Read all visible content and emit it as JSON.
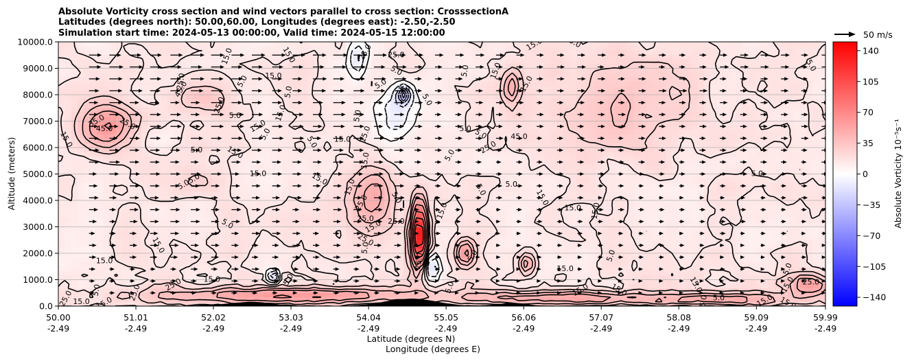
{
  "chart_data": {
    "type": "heatmap",
    "title_lines": [
      "Absolute Vorticity cross section and wind vectors parallel to cross section: CrosssectionA",
      "Latitudes (degrees north): 50.00,60.00, Longitudes (degrees east): -2.50,-2.50",
      "Simulation start time: 2024-05-13 00:00:00, Valid time: 2024-05-15 12:00:00"
    ],
    "ylabel": "Altitude (meters)",
    "xlabel_lines": [
      "Latitude (degrees N)",
      "Longitude (degrees E)"
    ],
    "xlim": [
      50.0,
      59.99
    ],
    "ylim": [
      0,
      10000
    ],
    "x_ticks": [
      {
        "lat": 50.0,
        "lat_label": "50.00",
        "lon_label": "-2.49"
      },
      {
        "lat": 51.01,
        "lat_label": "51.01",
        "lon_label": "-2.49"
      },
      {
        "lat": 52.02,
        "lat_label": "52.02",
        "lon_label": "-2.49"
      },
      {
        "lat": 53.03,
        "lat_label": "53.03",
        "lon_label": "-2.49"
      },
      {
        "lat": 54.04,
        "lat_label": "54.04",
        "lon_label": "-2.49"
      },
      {
        "lat": 55.05,
        "lat_label": "55.05",
        "lon_label": "-2.49"
      },
      {
        "lat": 56.06,
        "lat_label": "56.06",
        "lon_label": "-2.49"
      },
      {
        "lat": 57.07,
        "lat_label": "57.07",
        "lon_label": "-2.49"
      },
      {
        "lat": 58.08,
        "lat_label": "58.08",
        "lon_label": "-2.49"
      },
      {
        "lat": 59.09,
        "lat_label": "59.09",
        "lon_label": "-2.49"
      },
      {
        "lat": 59.99,
        "lat_label": "59.99",
        "lon_label": "-2.49"
      }
    ],
    "y_ticks": [
      {
        "value": 0,
        "label": "0.0"
      },
      {
        "value": 1000,
        "label": "1000.0"
      },
      {
        "value": 2000,
        "label": "2000.0"
      },
      {
        "value": 3000,
        "label": "3000.0"
      },
      {
        "value": 4000,
        "label": "4000.0"
      },
      {
        "value": 5000,
        "label": "5000.0"
      },
      {
        "value": 6000,
        "label": "6000.0"
      },
      {
        "value": 7000,
        "label": "7000.0"
      },
      {
        "value": 8000,
        "label": "8000.0"
      },
      {
        "value": 9000,
        "label": "9000.0"
      },
      {
        "value": 10000,
        "label": "10000.0"
      }
    ],
    "grid": "horizontal",
    "colorbar": {
      "label": "Absolute Vorticity 10⁻⁵s⁻¹",
      "range": [
        -150,
        150
      ],
      "ticks": [
        {
          "value": 140,
          "label": "140"
        },
        {
          "value": 105,
          "label": "105"
        },
        {
          "value": 70,
          "label": "70"
        },
        {
          "value": 35,
          "label": "35"
        },
        {
          "value": 0,
          "label": "0"
        },
        {
          "value": -35,
          "label": "−35"
        },
        {
          "value": -70,
          "label": "−70"
        },
        {
          "value": -105,
          "label": "−105"
        },
        {
          "value": -140,
          "label": "−140"
        }
      ],
      "colormap": "bwr"
    },
    "quiver_key": {
      "label": "50 m/s",
      "speed": 50
    },
    "vorticity_features": [
      {
        "lat": 50.6,
        "alt": 6800,
        "value": 45,
        "sx": 0.35,
        "sy": 900
      },
      {
        "lat": 51.9,
        "alt": 7900,
        "value": 25,
        "sx": 0.35,
        "sy": 700
      },
      {
        "lat": 54.7,
        "alt": 2700,
        "value": 140,
        "sx": 0.1,
        "sy": 1200
      },
      {
        "lat": 54.85,
        "alt": 1500,
        "value": -40,
        "sx": 0.12,
        "sy": 500
      },
      {
        "lat": 53.9,
        "alt": 9300,
        "value": -30,
        "sx": 0.12,
        "sy": 700
      },
      {
        "lat": 54.4,
        "alt": 7300,
        "value": -25,
        "sx": 0.25,
        "sy": 1200
      },
      {
        "lat": 54.5,
        "alt": 8000,
        "value": -50,
        "sx": 0.08,
        "sy": 300
      },
      {
        "lat": 52.8,
        "alt": 1100,
        "value": -55,
        "sx": 0.06,
        "sy": 250
      },
      {
        "lat": 54.1,
        "alt": 4000,
        "value": 35,
        "sx": 0.3,
        "sy": 1400
      },
      {
        "lat": 55.3,
        "alt": 2000,
        "value": 50,
        "sx": 0.12,
        "sy": 500
      },
      {
        "lat": 56.1,
        "alt": 1600,
        "value": 40,
        "sx": 0.1,
        "sy": 400
      },
      {
        "lat": 55.9,
        "alt": 8300,
        "value": 35,
        "sx": 0.1,
        "sy": 600
      },
      {
        "lat": 57.3,
        "alt": 7500,
        "value": 20,
        "sx": 1.0,
        "sy": 1800
      },
      {
        "lat": 59.8,
        "alt": 800,
        "value": 40,
        "sx": 0.25,
        "sy": 400
      },
      {
        "lat": 53.0,
        "alt": 400,
        "value": 45,
        "sx": 1.8,
        "sy": 300
      },
      {
        "lat": 56.5,
        "alt": 300,
        "value": 40,
        "sx": 1.2,
        "sy": 250
      },
      {
        "lat": 58.6,
        "alt": 250,
        "value": 35,
        "sx": 1.0,
        "sy": 250
      },
      {
        "lat": 51.8,
        "alt": 4700,
        "value": 8,
        "sx": 0.4,
        "sy": 500
      }
    ],
    "contour_labels": [
      {
        "lat": 52.2,
        "alt": 9450,
        "text": "15.0"
      },
      {
        "lat": 51.6,
        "alt": 8200,
        "text": "45.0"
      },
      {
        "lat": 50.6,
        "alt": 6700,
        "text": "45.0"
      },
      {
        "lat": 50.5,
        "alt": 7000,
        "text": "35.0"
      },
      {
        "lat": 50.9,
        "alt": 6900,
        "text": "25.0"
      },
      {
        "lat": 50.1,
        "alt": 6300,
        "text": "15.0"
      },
      {
        "lat": 51.8,
        "alt": 5900,
        "text": "5.0"
      },
      {
        "lat": 51.6,
        "alt": 8500,
        "text": "25.0"
      },
      {
        "lat": 52.1,
        "alt": 7600,
        "text": "25.0"
      },
      {
        "lat": 52.4,
        "alt": 8500,
        "text": "5.0"
      },
      {
        "lat": 52.3,
        "alt": 7200,
        "text": "5.0"
      },
      {
        "lat": 52.6,
        "alt": 6800,
        "text": "15.0"
      },
      {
        "lat": 52.3,
        "alt": 5800,
        "text": "15.0"
      },
      {
        "lat": 53.0,
        "alt": 9500,
        "text": "15.0"
      },
      {
        "lat": 52.8,
        "alt": 8700,
        "text": "15.0"
      },
      {
        "lat": 53.0,
        "alt": 8100,
        "text": "5.0"
      },
      {
        "lat": 52.9,
        "alt": 7300,
        "text": "15.0"
      },
      {
        "lat": 52.7,
        "alt": 6500,
        "text": "5.0"
      },
      {
        "lat": 52.6,
        "alt": 5000,
        "text": "15.0"
      },
      {
        "lat": 51.7,
        "alt": 4700,
        "text": "5.05.0"
      },
      {
        "lat": 52.2,
        "alt": 3100,
        "text": "5.0"
      },
      {
        "lat": 51.3,
        "alt": 2300,
        "text": "15.0"
      },
      {
        "lat": 50.6,
        "alt": 1700,
        "text": "15.0"
      },
      {
        "lat": 50.5,
        "alt": 600,
        "text": "5.0"
      },
      {
        "lat": 51.0,
        "alt": 500,
        "text": "25.0"
      },
      {
        "lat": 50.1,
        "alt": 280,
        "text": "25.0"
      },
      {
        "lat": 50.3,
        "alt": 150,
        "text": "15.0"
      },
      {
        "lat": 50.6,
        "alt": 100,
        "text": "15.0"
      },
      {
        "lat": 53.4,
        "alt": 4800,
        "text": "15.0"
      },
      {
        "lat": 53.3,
        "alt": 6200,
        "text": "5.0"
      },
      {
        "lat": 53.7,
        "alt": 6300,
        "text": "15.0"
      },
      {
        "lat": 53.9,
        "alt": 7200,
        "text": "5.0"
      },
      {
        "lat": 54.0,
        "alt": 6500,
        "text": "15.0"
      },
      {
        "lat": 54.0,
        "alt": 9600,
        "text": "25.0"
      },
      {
        "lat": 54.4,
        "alt": 9500,
        "text": "25.0"
      },
      {
        "lat": 54.2,
        "alt": 8400,
        "text": "5.0"
      },
      {
        "lat": 54.4,
        "alt": 8900,
        "text": "5.0"
      },
      {
        "lat": 54.8,
        "alt": 7800,
        "text": "5.0"
      },
      {
        "lat": 54.5,
        "alt": 8200,
        "text": "5.0"
      },
      {
        "lat": 54.0,
        "alt": 5500,
        "text": "15.0"
      },
      {
        "lat": 53.8,
        "alt": 4500,
        "text": "15.0"
      },
      {
        "lat": 53.95,
        "alt": 3900,
        "text": "25.0"
      },
      {
        "lat": 54.0,
        "alt": 3300,
        "text": "25.0"
      },
      {
        "lat": 54.1,
        "alt": 3000,
        "text": "15.0"
      },
      {
        "lat": 54.0,
        "alt": 2500,
        "text": "25.0"
      },
      {
        "lat": 54.4,
        "alt": 4100,
        "text": "5.0"
      },
      {
        "lat": 54.4,
        "alt": 3200,
        "text": "25.0"
      },
      {
        "lat": 54.0,
        "alt": 2200,
        "text": "5.0"
      },
      {
        "lat": 55.0,
        "alt": 3600,
        "text": "15.0"
      },
      {
        "lat": 55.1,
        "alt": 5700,
        "text": "5.0"
      },
      {
        "lat": 55.3,
        "alt": 6700,
        "text": "5.0"
      },
      {
        "lat": 55.6,
        "alt": 6000,
        "text": "25.0"
      },
      {
        "lat": 55.5,
        "alt": 6500,
        "text": "5.0"
      },
      {
        "lat": 55.5,
        "alt": 4400,
        "text": "5.0"
      },
      {
        "lat": 55.9,
        "alt": 4600,
        "text": "5.0"
      },
      {
        "lat": 55.3,
        "alt": 8900,
        "text": "5.0"
      },
      {
        "lat": 55.7,
        "alt": 8900,
        "text": "15.0"
      },
      {
        "lat": 56.1,
        "alt": 8400,
        "text": "15.0"
      },
      {
        "lat": 56.0,
        "alt": 6400,
        "text": "45.0"
      },
      {
        "lat": 56.2,
        "alt": 9900,
        "text": "15.0"
      },
      {
        "lat": 56.7,
        "alt": 10000,
        "text": "25.0"
      },
      {
        "lat": 56.3,
        "alt": 4100,
        "text": "15.0"
      },
      {
        "lat": 56.7,
        "alt": 3700,
        "text": "15.0"
      },
      {
        "lat": 57.0,
        "alt": 3600,
        "text": "15.0"
      },
      {
        "lat": 57.2,
        "alt": 1900,
        "text": "5.0"
      },
      {
        "lat": 55.4,
        "alt": 1900,
        "text": "5.0"
      },
      {
        "lat": 56.6,
        "alt": 1400,
        "text": "15.0"
      },
      {
        "lat": 56.8,
        "alt": 600,
        "text": "15.0"
      },
      {
        "lat": 57.3,
        "alt": 600,
        "text": "15.0"
      },
      {
        "lat": 58.3,
        "alt": 800,
        "text": "15.0"
      },
      {
        "lat": 58.6,
        "alt": 300,
        "text": "5.0"
      },
      {
        "lat": 58.4,
        "alt": 100,
        "text": "15.0"
      },
      {
        "lat": 59.5,
        "alt": 1400,
        "text": "5.0"
      },
      {
        "lat": 59.5,
        "alt": 800,
        "text": "15.0"
      },
      {
        "lat": 59.8,
        "alt": 900,
        "text": "25.0"
      },
      {
        "lat": 59.2,
        "alt": 200,
        "text": "15.0"
      },
      {
        "lat": 59.5,
        "alt": 100,
        "text": "15.0"
      },
      {
        "lat": 59.8,
        "alt": 9100,
        "text": "5.0"
      },
      {
        "lat": 59.1,
        "alt": 5000,
        "text": "5.0"
      },
      {
        "lat": 54.7,
        "alt": 1700,
        "text": "15.0"
      },
      {
        "lat": 55.1,
        "alt": 700,
        "text": "5.0"
      },
      {
        "lat": 53.0,
        "alt": 1000,
        "text": "5.0"
      },
      {
        "lat": 52.0,
        "alt": 1000,
        "text": "15.0"
      },
      {
        "lat": 51.5,
        "alt": 800,
        "text": "25.0"
      }
    ],
    "contour_levels": [
      5,
      15,
      25,
      35,
      45
    ]
  }
}
